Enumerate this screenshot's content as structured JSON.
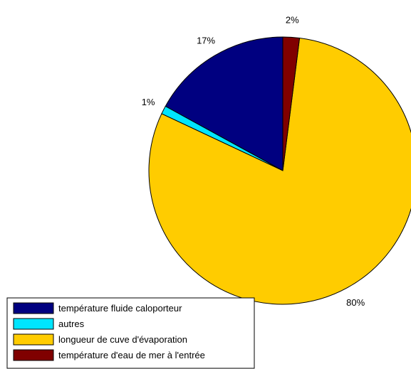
{
  "chart_data": {
    "type": "pie",
    "title": "",
    "legend_position": "bottom-left",
    "slices": [
      {
        "label": "température fluide caloporteur",
        "value": 17,
        "display": "17%",
        "color": "#000080"
      },
      {
        "label": "autres",
        "value": 1,
        "display": "1%",
        "color": "#00e5ff"
      },
      {
        "label": "longueur de cuve d'évaporation",
        "value": 80,
        "display": "80%",
        "color": "#ffcc00"
      },
      {
        "label": "température d'eau de mer à l'entrée",
        "value": 2,
        "display": "2%",
        "color": "#800000"
      }
    ]
  }
}
